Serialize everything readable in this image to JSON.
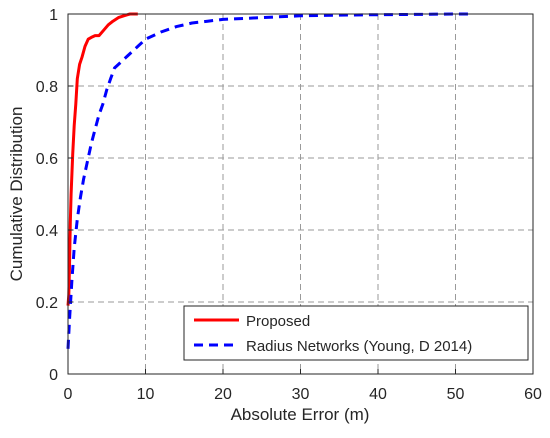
{
  "chart_data": {
    "type": "line",
    "title": "",
    "xlabel": "Absolute Error (m)",
    "ylabel": "Cumulative Distribution",
    "xlim": [
      0,
      60
    ],
    "ylim": [
      0,
      1
    ],
    "xticks": [
      "0",
      "10",
      "20",
      "30",
      "40",
      "50",
      "60"
    ],
    "yticks": [
      "0",
      "0.2",
      "0.4",
      "0.6",
      "0.8",
      "1"
    ],
    "grid": true,
    "legend_position": "bottom-right",
    "series": [
      {
        "name": "Proposed",
        "color": "#ff0000",
        "style": "solid",
        "x": [
          0,
          0.1,
          0.2,
          0.3,
          0.4,
          0.6,
          0.8,
          1.0,
          1.2,
          1.5,
          1.8,
          2.2,
          2.6,
          3.0,
          3.5,
          4.0,
          4.6,
          5.2,
          5.8,
          6.5,
          7.2,
          8.0,
          9.0
        ],
        "y": [
          0.19,
          0.22,
          0.3,
          0.42,
          0.5,
          0.61,
          0.69,
          0.75,
          0.82,
          0.86,
          0.88,
          0.91,
          0.93,
          0.935,
          0.94,
          0.94,
          0.955,
          0.97,
          0.98,
          0.99,
          0.995,
          1.0,
          1.0
        ]
      },
      {
        "name": "Radius Networks (Young, D 2014)",
        "color": "#0000ff",
        "style": "dashed",
        "x": [
          0,
          0.2,
          0.5,
          0.8,
          1.2,
          1.6,
          2.0,
          2.5,
          3.0,
          3.5,
          4.0,
          4.5,
          5.0,
          5.5,
          6.0,
          7.0,
          8.0,
          9.0,
          10.0,
          12.0,
          14.0,
          16.0,
          18.0,
          20.0,
          25.0,
          30.0,
          35.0,
          40.0,
          45.0,
          50.0,
          52.0
        ],
        "y": [
          0.07,
          0.15,
          0.26,
          0.35,
          0.43,
          0.49,
          0.54,
          0.59,
          0.64,
          0.68,
          0.72,
          0.75,
          0.79,
          0.82,
          0.85,
          0.87,
          0.89,
          0.91,
          0.93,
          0.95,
          0.965,
          0.975,
          0.98,
          0.985,
          0.99,
          0.995,
          0.997,
          0.998,
          0.999,
          1.0,
          1.0
        ]
      }
    ]
  }
}
